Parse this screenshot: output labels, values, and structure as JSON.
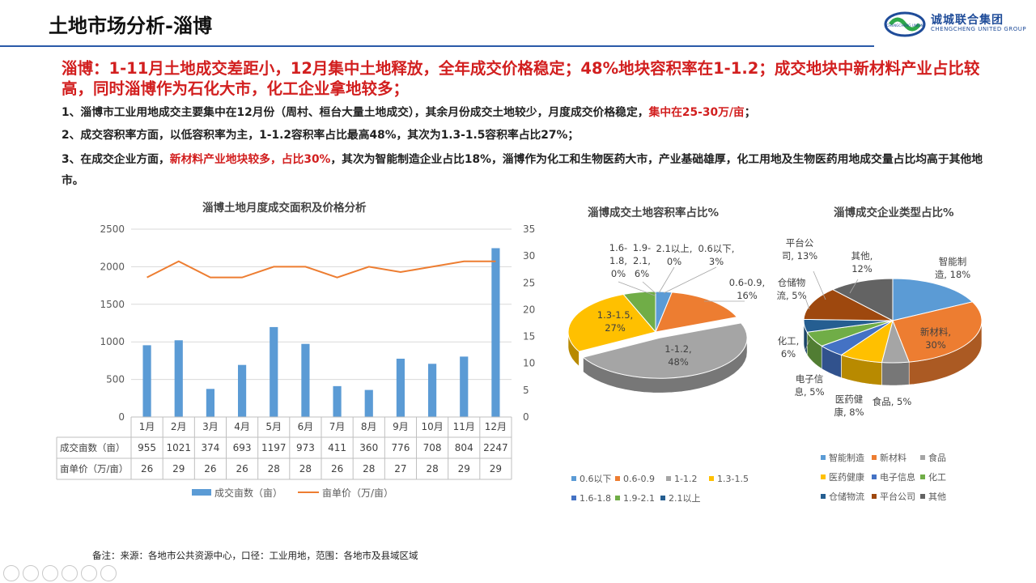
{
  "header": {
    "title": "土地市场分析-淄博",
    "logo_cn": "诚城联合集团",
    "logo_en": "CHENGCHENG UNITED GROUP",
    "logo_ring_text": "CHENGCHENG UNION"
  },
  "summary": {
    "headline": "淄博：1-11月土地成交差距小，12月集中土地释放，全年成交价格稳定；48%地块容积率在1-1.2；成交地块中新材料产业占比较高，同时淄博作为石化大市，化工企业拿地较多；",
    "p1_text": "1、淄博市工业用地成交主要集中在12月份（周村、桓台大量土地成交），其余月份成交土地较少，月度成交价格稳定，",
    "p1_red": "集中在25-30万/亩",
    "p1_end": "；",
    "p2_text": "2、成交容积率方面，以低容积率为主，1-1.2容积率占比最高48%，其次为1.3-1.5容积率占比27%；",
    "p3_text": "3、在成交企业方面，",
    "p3_red": "新材料产业地块较多，占比30%",
    "p3_end": "，其次为智能制造企业占比18%，淄博作为化工和生物医药大市，产业基础雄厚，化工用地及生物医药用地成交量占比均高于其他地市。"
  },
  "footnote": "备注：来源：各地市公共资源中心，口径：工业用地，范围：各地市及县域区域",
  "colors": {
    "accent_red": "#d21f1f",
    "bar": "#5b9bd5",
    "line": "#ed7d31"
  },
  "chart_data": [
    {
      "type": "bar",
      "title": "淄博土地月度成交面积及价格分析",
      "categories": [
        "1月",
        "2月",
        "3月",
        "4月",
        "5月",
        "6月",
        "7月",
        "8月",
        "9月",
        "10月",
        "11月",
        "12月"
      ],
      "series": [
        {
          "name": "成交亩数（亩）",
          "kind": "bar",
          "axis": "left",
          "color": "#5b9bd5",
          "values": [
            955,
            1021,
            374,
            693,
            1197,
            973,
            411,
            360,
            776,
            708,
            804,
            2247
          ]
        },
        {
          "name": "亩单价（万/亩）",
          "kind": "line",
          "axis": "right",
          "color": "#ed7d31",
          "values": [
            26,
            29,
            26,
            26,
            28,
            28,
            26,
            28,
            27,
            28,
            29,
            29
          ]
        }
      ],
      "ylim_left": [
        0,
        2500
      ],
      "yticks_left": [
        0,
        500,
        1000,
        1500,
        2000,
        2500
      ],
      "ylim_right": [
        0,
        35
      ],
      "yticks_right": [
        0,
        5,
        10,
        15,
        20,
        25,
        30,
        35
      ],
      "legend_position": "bottom",
      "data_table": true
    },
    {
      "type": "pie",
      "title": "淄博成交土地容积率占比%",
      "labels": [
        "0.6以下",
        "0.6-0.9",
        "1-1.2",
        "1.3-1.5",
        "1.6-1.8",
        "1.9-2.1",
        "2.1以上"
      ],
      "values": [
        3,
        16,
        48,
        27,
        0,
        6,
        0
      ],
      "colors": [
        "#5b9bd5",
        "#ed7d31",
        "#a5a5a5",
        "#ffc000",
        "#4472c4",
        "#70ad47",
        "#255e91"
      ],
      "data_labels": [
        [
          "0.6以下,",
          "3%"
        ],
        [
          "0.6-0.9,",
          "16%"
        ],
        [
          "1-1.2,",
          "48%"
        ],
        [
          "1.3-1.5,",
          "27%"
        ],
        [
          "1.6-",
          "1.8,",
          "0%"
        ],
        [
          "1.9-",
          "2.1,",
          "6%"
        ],
        [
          "2.1以上,",
          "0%"
        ]
      ],
      "legend_position": "bottom"
    },
    {
      "type": "pie",
      "title": "淄博成交企业类型占比%",
      "labels": [
        "智能制造",
        "新材料",
        "食品",
        "医药健康",
        "电子信息",
        "化工",
        "仓储物流",
        "平台公司",
        "其他"
      ],
      "values": [
        18,
        30,
        5,
        8,
        5,
        6,
        5,
        13,
        12
      ],
      "colors": [
        "#5b9bd5",
        "#ed7d31",
        "#a5a5a5",
        "#ffc000",
        "#4472c4",
        "#70ad47",
        "#255e91",
        "#9e480e",
        "#636363"
      ],
      "data_labels": [
        [
          "智能制",
          "造, 18%"
        ],
        [
          "新材料,",
          "30%"
        ],
        [
          "食品, 5%"
        ],
        [
          "医药健",
          "康, 8%"
        ],
        [
          "电子信",
          "息, 5%"
        ],
        [
          "化工,",
          "6%"
        ],
        [
          "仓储物",
          "流, 5%"
        ],
        [
          "平台公",
          "司, 13%"
        ],
        [
          "其他,",
          "12%"
        ]
      ],
      "legend_position": "bottom"
    }
  ]
}
